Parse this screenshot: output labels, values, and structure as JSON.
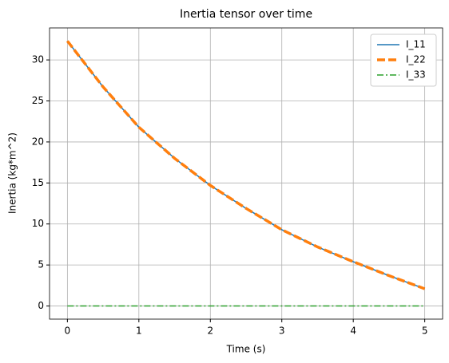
{
  "chart_data": {
    "type": "line",
    "title": "Inertia tensor over time",
    "xlabel": "Time (s)",
    "ylabel": "Inertia (kg*m^2)",
    "x": [
      0,
      0.5,
      1,
      1.5,
      2,
      2.5,
      3,
      3.5,
      4,
      4.5,
      5
    ],
    "series": [
      {
        "name": "I_11",
        "color": "#1f77b4",
        "style": "solid",
        "values": [
          32.3,
          26.7,
          21.8,
          18.0,
          14.7,
          11.9,
          9.3,
          7.2,
          5.4,
          3.7,
          2.1
        ]
      },
      {
        "name": "I_22",
        "color": "#ff7f0e",
        "style": "dashed",
        "values": [
          32.3,
          26.7,
          21.8,
          18.0,
          14.7,
          11.9,
          9.3,
          7.2,
          5.4,
          3.7,
          2.1
        ]
      },
      {
        "name": "I_33",
        "color": "#2ca02c",
        "style": "dashdot",
        "values": [
          0,
          0,
          0,
          0,
          0,
          0,
          0,
          0,
          0,
          0,
          0
        ]
      }
    ],
    "xlim": [
      -0.25,
      5.25
    ],
    "xticks": [
      0,
      1,
      2,
      3,
      4,
      5
    ],
    "ylim": [
      -1.6,
      33.9
    ],
    "yticks": [
      0,
      5,
      10,
      15,
      20,
      25,
      30
    ],
    "grid": true,
    "legend": "upper-right"
  }
}
